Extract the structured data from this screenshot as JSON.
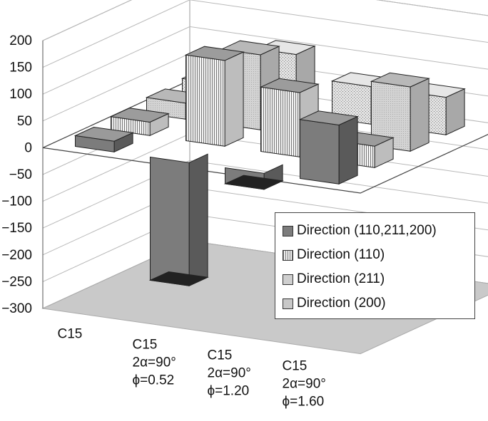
{
  "chart_data": {
    "type": "bar",
    "subtype": "3d-clustered-column",
    "ylim": [
      -300,
      200
    ],
    "y_ticks": [
      "200",
      "150",
      "100",
      "50",
      "0",
      "−50",
      "−100",
      "−150",
      "−200",
      "−250",
      "−300"
    ],
    "categories": [
      [
        "C15"
      ],
      [
        "C15",
        "2α=90°",
        "ϕ=0.52"
      ],
      [
        "C15",
        "2α=90°",
        "ϕ=1.20"
      ],
      [
        "C15",
        "2α=90°",
        "ϕ=1.60"
      ]
    ],
    "series": [
      {
        "name": "Direction (110,211,200)",
        "values": [
          20,
          -230,
          -30,
          110
        ],
        "color": "#7c7c7c"
      },
      {
        "name": "Direction (110)",
        "values": [
          25,
          160,
          120,
          40
        ],
        "color": "#dcdcdc"
      },
      {
        "name": "Direction (211)",
        "values": [
          30,
          140,
          20,
          120
        ],
        "color": "#c8c8c8"
      },
      {
        "name": "Direction (200)",
        "values": [
          35,
          110,
          70,
          70
        ],
        "color": "#c4c4c4"
      }
    ],
    "legend_position": "right",
    "grid": true
  }
}
